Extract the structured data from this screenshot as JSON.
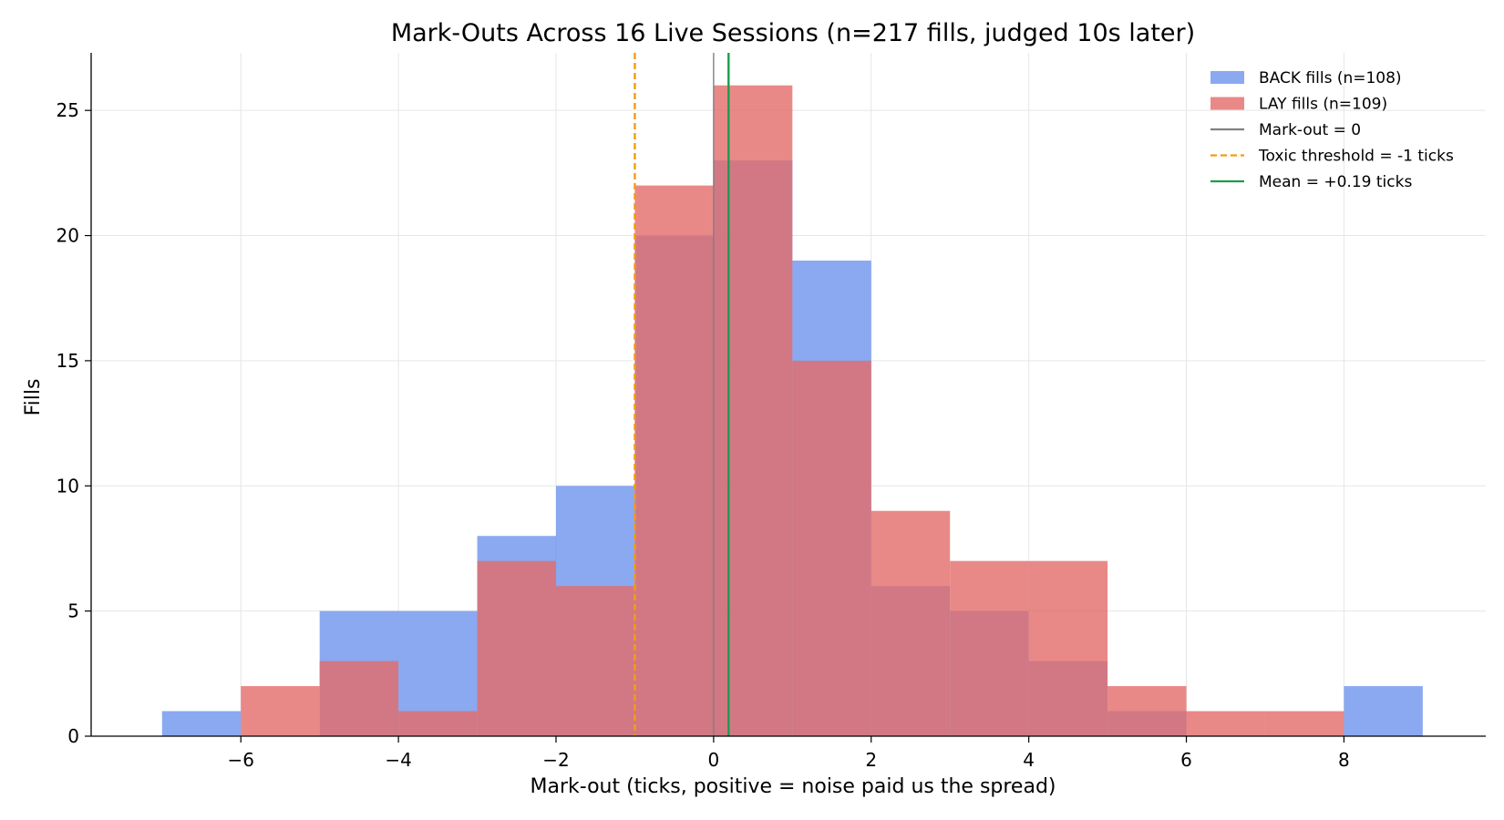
{
  "chart_data": {
    "type": "bar",
    "title": "Mark-Outs Across 16 Live Sessions (n=217 fills, judged 10s later)",
    "xlabel": "Mark-out (ticks, positive = noise paid us the spread)",
    "ylabel": "Fills",
    "xlim": [
      -7.9,
      9.8
    ],
    "ylim": [
      0,
      27.3
    ],
    "xticks": [
      -6,
      -4,
      -2,
      0,
      2,
      4,
      6,
      8
    ],
    "xtick_labels": [
      "−6",
      "−4",
      "−2",
      "0",
      "2",
      "4",
      "6",
      "8"
    ],
    "yticks": [
      0,
      5,
      10,
      15,
      20,
      25
    ],
    "ytick_labels": [
      "0",
      "5",
      "10",
      "15",
      "20",
      "25"
    ],
    "grid": true,
    "legend_position": "top-right",
    "bin_edges": [
      -7,
      -6,
      -5,
      -4,
      -3,
      -2,
      -1,
      0,
      1,
      2,
      3,
      4,
      5,
      6,
      7,
      8,
      9
    ],
    "series": [
      {
        "name": "BACK fills (n=108)",
        "color": "#6d94ee",
        "opacity": 0.8,
        "counts": [
          1,
          0,
          5,
          5,
          8,
          10,
          20,
          23,
          19,
          6,
          5,
          3,
          1,
          0,
          0,
          2
        ]
      },
      {
        "name": "LAY fills (n=109)",
        "color": "#e36b69",
        "opacity": 0.8,
        "counts": [
          0,
          2,
          3,
          1,
          7,
          6,
          22,
          26,
          15,
          9,
          7,
          7,
          2,
          1,
          1,
          0
        ]
      }
    ],
    "reference_lines": [
      {
        "name": "Mark-out = 0",
        "x": 0,
        "color": "#808080",
        "style": "solid"
      },
      {
        "name": "Toxic threshold = -1 ticks",
        "x": -1,
        "color": "#f39c12",
        "style": "dashed"
      },
      {
        "name": "Mean = +0.19 ticks",
        "x": 0.19,
        "color": "#1a9c4a",
        "style": "solid"
      }
    ]
  }
}
